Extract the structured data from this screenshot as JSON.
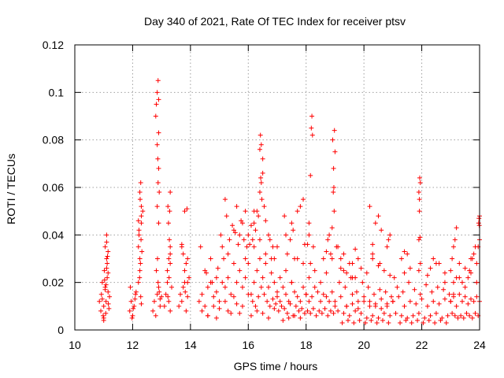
{
  "chart_data": {
    "type": "scatter",
    "title": "Day 340 of 2021, Rate Of TEC Index for receiver ptsv",
    "xlabel": "GPS time / hours",
    "ylabel": "ROTI / TECUs",
    "xlim": [
      10,
      24
    ],
    "ylim": [
      0,
      0.12
    ],
    "xticks": [
      10,
      12,
      14,
      16,
      18,
      20,
      22,
      24
    ],
    "xtick_labels": [
      "10",
      "12",
      "14",
      "16",
      "18",
      "20",
      "22",
      "24"
    ],
    "yticks": [
      0,
      0.02,
      0.04,
      0.06,
      0.08,
      0.1,
      0.12
    ],
    "ytick_labels": [
      "0",
      "0.02",
      "0.04",
      "0.06",
      "0.08",
      "0.1",
      "0.12"
    ],
    "grid": true,
    "marker": "+",
    "series": [
      {
        "name": "ROTI",
        "color": "#ff0000",
        "x": [
          10.85,
          10.9,
          10.92,
          10.95,
          10.98,
          11.0,
          11.02,
          11.05,
          11.08,
          11.1,
          11.12,
          11.15,
          11.18,
          11.2,
          11.05,
          11.1,
          11.12,
          11.15,
          11.0,
          11.08,
          11.1,
          11.13,
          11.16,
          11.0,
          11.05,
          10.95,
          11.1,
          11.15,
          11.03,
          11.07,
          11.9,
          11.95,
          12.0,
          12.05,
          12.1,
          11.92,
          11.98,
          12.02,
          12.08,
          12.12,
          12.2,
          12.25,
          12.3,
          12.35,
          12.2,
          12.22,
          12.25,
          12.28,
          12.3,
          12.25,
          12.27,
          12.3,
          12.32,
          12.22,
          12.26,
          12.28,
          12.3,
          12.24,
          12.29,
          12.2,
          12.7,
          12.75,
          12.8,
          12.85,
          12.9,
          12.95,
          13.0,
          12.8,
          12.82,
          12.85,
          12.88,
          12.9,
          12.85,
          12.87,
          12.9,
          12.88,
          12.9,
          12.92,
          12.88,
          12.92,
          12.95,
          12.82,
          12.86,
          12.9,
          12.85,
          13.1,
          13.15,
          13.2,
          13.25,
          13.3,
          13.35,
          13.2,
          13.25,
          13.3,
          13.22,
          13.28,
          13.3,
          13.24,
          13.27,
          13.3,
          13.22,
          13.26,
          13.3,
          13.6,
          13.65,
          13.7,
          13.75,
          13.8,
          13.85,
          13.9,
          13.95,
          13.8,
          13.9,
          13.7,
          13.75,
          13.85,
          13.9,
          13.8,
          13.88,
          13.7,
          13.82,
          14.3,
          14.4,
          14.5,
          14.6,
          14.7,
          14.8,
          14.9,
          15.0,
          15.1,
          15.2,
          15.3,
          15.4,
          15.5,
          15.6,
          15.7,
          15.8,
          15.9,
          16.0,
          14.4,
          14.6,
          14.8,
          15.0,
          15.2,
          15.4,
          15.6,
          15.8,
          16.0,
          14.5,
          14.7,
          14.9,
          15.1,
          15.3,
          15.5,
          15.7,
          15.9,
          14.35,
          14.55,
          14.75,
          14.95,
          15.15,
          15.35,
          15.55,
          15.75,
          15.95,
          15.2,
          15.25,
          15.5,
          15.6,
          15.8,
          15.9,
          15.05,
          15.45,
          15.65,
          15.85,
          14.6,
          14.9,
          15.3,
          15.7,
          16.1,
          16.2,
          16.3,
          16.4,
          16.5,
          16.6,
          16.7,
          16.8,
          16.9,
          17.0,
          16.15,
          16.25,
          16.35,
          16.45,
          16.55,
          16.65,
          16.75,
          16.85,
          16.95,
          16.2,
          16.4,
          16.6,
          16.8,
          16.1,
          16.3,
          16.5,
          16.7,
          16.9,
          16.2,
          16.3,
          16.4,
          16.45,
          16.5,
          16.4,
          16.45,
          16.42,
          16.5,
          16.43,
          16.47,
          16.0,
          16.05,
          16.2,
          16.25,
          16.35,
          16.1,
          16.15,
          16.55,
          16.6,
          16.7,
          16.75,
          16.85,
          16.9,
          17.0,
          17.1,
          17.2,
          17.3,
          17.4,
          17.5,
          17.6,
          17.7,
          17.8,
          17.9,
          18.0,
          17.05,
          17.15,
          17.25,
          17.35,
          17.45,
          17.55,
          17.65,
          17.75,
          17.85,
          17.95,
          17.1,
          17.3,
          17.5,
          17.7,
          17.9,
          17.2,
          17.4,
          17.6,
          17.8,
          17.0,
          17.3,
          17.5,
          17.7,
          17.8,
          17.9,
          17.45,
          17.55,
          17.25,
          17.6,
          17.95,
          17.35,
          18.0,
          18.1,
          18.2,
          18.3,
          18.4,
          18.5,
          18.6,
          18.7,
          18.8,
          18.9,
          19.0,
          18.05,
          18.15,
          18.25,
          18.35,
          18.45,
          18.55,
          18.65,
          18.75,
          18.85,
          18.95,
          18.1,
          18.3,
          18.5,
          18.7,
          18.9,
          18.05,
          18.1,
          18.15,
          18.2,
          18.18,
          18.22,
          18.1,
          18.15,
          18.25,
          18.6,
          18.7,
          18.75,
          18.8,
          18.85,
          18.9,
          18.95,
          18.92,
          18.98,
          19.0,
          18.94,
          18.96,
          18.97,
          19.05,
          19.0,
          19.2,
          19.4,
          19.6,
          19.8,
          20.0,
          20.2,
          20.4,
          20.6,
          20.8,
          21.0,
          19.1,
          19.3,
          19.5,
          19.7,
          19.9,
          20.1,
          20.3,
          20.5,
          20.7,
          20.9,
          19.15,
          19.35,
          19.55,
          19.75,
          19.95,
          20.15,
          20.35,
          20.55,
          20.75,
          20.95,
          19.25,
          19.45,
          19.65,
          19.85,
          20.05,
          20.25,
          20.45,
          20.65,
          20.85,
          19.3,
          19.5,
          19.7,
          19.9,
          20.1,
          20.3,
          20.5,
          20.7,
          20.9,
          19.4,
          19.6,
          19.8,
          20.0,
          20.2,
          20.4,
          20.6,
          20.8,
          19.1,
          19.2,
          19.3,
          19.6,
          19.7,
          19.8,
          20.2,
          20.3,
          20.4,
          20.5,
          20.8,
          20.9,
          19.2,
          19.4,
          19.6,
          20.3,
          20.55,
          20.6,
          20.85,
          21.0,
          21.2,
          21.4,
          21.6,
          21.8,
          22.0,
          22.2,
          22.4,
          22.6,
          22.8,
          23.0,
          21.1,
          21.3,
          21.5,
          21.7,
          21.9,
          22.1,
          22.3,
          22.5,
          22.7,
          22.9,
          21.15,
          21.35,
          21.55,
          21.75,
          21.95,
          22.15,
          22.35,
          22.55,
          22.75,
          22.95,
          21.25,
          21.45,
          21.65,
          21.85,
          22.05,
          22.25,
          22.45,
          22.65,
          22.85,
          21.05,
          21.4,
          21.6,
          21.9,
          22.2,
          22.5,
          22.8,
          21.3,
          21.4,
          21.5,
          21.9,
          21.92,
          21.95,
          21.9,
          21.93,
          21.92,
          21.94,
          21.95,
          22.3,
          22.4,
          22.6,
          22.8,
          23.0,
          23.1,
          23.2,
          23.3,
          23.4,
          23.5,
          23.6,
          23.7,
          23.8,
          23.9,
          24.0,
          23.05,
          23.15,
          23.25,
          23.35,
          23.45,
          23.55,
          23.65,
          23.75,
          23.85,
          23.95,
          23.1,
          23.3,
          23.5,
          23.7,
          23.9,
          23.0,
          23.05,
          23.1,
          23.15,
          23.2,
          23.3,
          23.5,
          23.6,
          23.7,
          23.8,
          23.9,
          23.95,
          24.0,
          23.98,
          23.97,
          23.99,
          24.0,
          23.85,
          23.75,
          23.65,
          23.4,
          23.2,
          23.1
        ],
        "y": [
          0.012,
          0.008,
          0.015,
          0.02,
          0.006,
          0.01,
          0.025,
          0.018,
          0.012,
          0.03,
          0.022,
          0.016,
          0.009,
          0.014,
          0.035,
          0.04,
          0.028,
          0.033,
          0.005,
          0.019,
          0.026,
          0.031,
          0.011,
          0.004,
          0.017,
          0.013,
          0.037,
          0.024,
          0.021,
          0.007,
          0.008,
          0.012,
          0.006,
          0.01,
          0.015,
          0.018,
          0.005,
          0.009,
          0.013,
          0.016,
          0.02,
          0.03,
          0.045,
          0.05,
          0.035,
          0.04,
          0.058,
          0.062,
          0.052,
          0.025,
          0.028,
          0.048,
          0.033,
          0.042,
          0.055,
          0.014,
          0.011,
          0.022,
          0.038,
          0.046,
          0.008,
          0.012,
          0.006,
          0.015,
          0.018,
          0.01,
          0.014,
          0.09,
          0.095,
          0.1,
          0.105,
          0.097,
          0.078,
          0.072,
          0.083,
          0.062,
          0.068,
          0.058,
          0.02,
          0.016,
          0.013,
          0.025,
          0.03,
          0.045,
          0.052,
          0.01,
          0.015,
          0.02,
          0.012,
          0.008,
          0.018,
          0.025,
          0.03,
          0.035,
          0.052,
          0.05,
          0.058,
          0.045,
          0.038,
          0.032,
          0.014,
          0.022,
          0.028,
          0.01,
          0.015,
          0.012,
          0.018,
          0.02,
          0.008,
          0.014,
          0.022,
          0.025,
          0.03,
          0.035,
          0.032,
          0.028,
          0.02,
          0.05,
          0.051,
          0.036,
          0.016,
          0.012,
          0.015,
          0.01,
          0.018,
          0.02,
          0.014,
          0.016,
          0.012,
          0.02,
          0.018,
          0.022,
          0.015,
          0.014,
          0.02,
          0.025,
          0.018,
          0.022,
          0.028,
          0.008,
          0.006,
          0.01,
          0.009,
          0.012,
          0.007,
          0.011,
          0.01,
          0.015,
          0.025,
          0.03,
          0.022,
          0.035,
          0.032,
          0.028,
          0.04,
          0.03,
          0.035,
          0.024,
          0.02,
          0.026,
          0.03,
          0.038,
          0.041,
          0.046,
          0.035,
          0.055,
          0.048,
          0.042,
          0.052,
          0.045,
          0.05,
          0.04,
          0.044,
          0.036,
          0.038,
          0.006,
          0.005,
          0.008,
          0.007,
          0.015,
          0.02,
          0.025,
          0.03,
          0.022,
          0.028,
          0.018,
          0.024,
          0.02,
          0.016,
          0.012,
          0.01,
          0.014,
          0.018,
          0.015,
          0.012,
          0.01,
          0.013,
          0.011,
          0.035,
          0.038,
          0.032,
          0.03,
          0.006,
          0.008,
          0.007,
          0.005,
          0.009,
          0.045,
          0.05,
          0.058,
          0.062,
          0.066,
          0.076,
          0.078,
          0.082,
          0.072,
          0.064,
          0.055,
          0.04,
          0.036,
          0.05,
          0.042,
          0.048,
          0.044,
          0.038,
          0.052,
          0.046,
          0.04,
          0.038,
          0.035,
          0.03,
          0.014,
          0.012,
          0.018,
          0.015,
          0.012,
          0.02,
          0.016,
          0.014,
          0.012,
          0.018,
          0.015,
          0.008,
          0.01,
          0.009,
          0.007,
          0.011,
          0.006,
          0.01,
          0.008,
          0.009,
          0.007,
          0.022,
          0.025,
          0.02,
          0.03,
          0.028,
          0.004,
          0.005,
          0.006,
          0.005,
          0.035,
          0.04,
          0.045,
          0.05,
          0.052,
          0.055,
          0.038,
          0.042,
          0.048,
          0.03,
          0.036,
          0.032,
          0.015,
          0.012,
          0.014,
          0.018,
          0.016,
          0.012,
          0.015,
          0.014,
          0.012,
          0.016,
          0.01,
          0.008,
          0.007,
          0.009,
          0.006,
          0.008,
          0.007,
          0.009,
          0.006,
          0.008,
          0.007,
          0.022,
          0.025,
          0.02,
          0.024,
          0.03,
          0.036,
          0.045,
          0.065,
          0.09,
          0.085,
          0.082,
          0.04,
          0.028,
          0.035,
          0.03,
          0.033,
          0.038,
          0.04,
          0.032,
          0.043,
          0.068,
          0.08,
          0.084,
          0.075,
          0.058,
          0.06,
          0.05,
          0.035,
          0.012,
          0.014,
          0.01,
          0.015,
          0.012,
          0.014,
          0.012,
          0.01,
          0.013,
          0.011,
          0.012,
          0.008,
          0.007,
          0.006,
          0.008,
          0.007,
          0.005,
          0.006,
          0.005,
          0.007,
          0.006,
          0.02,
          0.018,
          0.022,
          0.016,
          0.02,
          0.018,
          0.015,
          0.017,
          0.016,
          0.014,
          0.003,
          0.004,
          0.003,
          0.004,
          0.003,
          0.004,
          0.003,
          0.004,
          0.003,
          0.025,
          0.028,
          0.022,
          0.026,
          0.024,
          0.03,
          0.027,
          0.025,
          0.023,
          0.01,
          0.011,
          0.009,
          0.012,
          0.01,
          0.011,
          0.009,
          0.01,
          0.035,
          0.03,
          0.032,
          0.028,
          0.034,
          0.03,
          0.052,
          0.036,
          0.045,
          0.048,
          0.035,
          0.04,
          0.026,
          0.024,
          0.022,
          0.032,
          0.028,
          0.042,
          0.038,
          0.012,
          0.014,
          0.01,
          0.012,
          0.011,
          0.013,
          0.01,
          0.012,
          0.011,
          0.013,
          0.012,
          0.007,
          0.006,
          0.005,
          0.006,
          0.007,
          0.005,
          0.006,
          0.007,
          0.005,
          0.006,
          0.018,
          0.016,
          0.02,
          0.017,
          0.015,
          0.019,
          0.016,
          0.018,
          0.017,
          0.015,
          0.003,
          0.004,
          0.003,
          0.004,
          0.003,
          0.004,
          0.003,
          0.004,
          0.003,
          0.022,
          0.024,
          0.026,
          0.025,
          0.023,
          0.028,
          0.02,
          0.03,
          0.033,
          0.032,
          0.038,
          0.055,
          0.062,
          0.058,
          0.064,
          0.05,
          0.039,
          0.028,
          0.026,
          0.03,
          0.028,
          0.024,
          0.012,
          0.014,
          0.01,
          0.015,
          0.012,
          0.014,
          0.011,
          0.013,
          0.012,
          0.014,
          0.012,
          0.007,
          0.006,
          0.005,
          0.006,
          0.005,
          0.007,
          0.006,
          0.005,
          0.007,
          0.006,
          0.02,
          0.022,
          0.018,
          0.024,
          0.02,
          0.025,
          0.03,
          0.035,
          0.038,
          0.043,
          0.028,
          0.026,
          0.022,
          0.03,
          0.032,
          0.028,
          0.035,
          0.038,
          0.047,
          0.045,
          0.044,
          0.048,
          0.035,
          0.03,
          0.025,
          0.02,
          0.022,
          0.015
        ]
      }
    ]
  }
}
